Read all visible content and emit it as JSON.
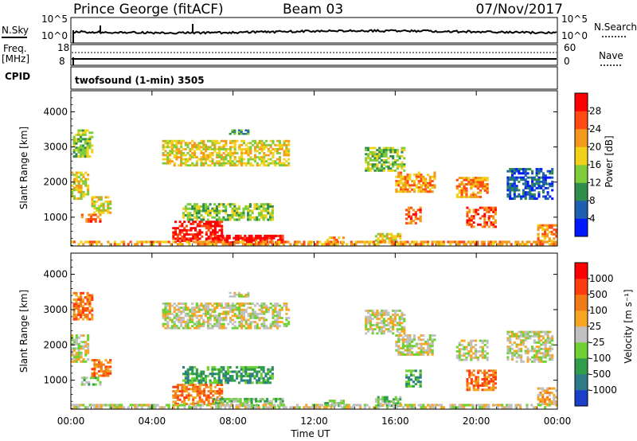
{
  "header": {
    "station": "Prince George (fitACF)",
    "beam": "Beam 03",
    "date": "07/Nov/2017"
  },
  "top_panels": {
    "nsky_label": "N.Sky",
    "nsearch_label": "N.Search",
    "nsky_ticks": [
      "10^5",
      "10^0"
    ],
    "nsearch_ticks": [
      "10^5",
      "10^0"
    ],
    "freq_label_top": "Freq.",
    "freq_label_unit": "[MHz]",
    "freq_ticks": [
      "18",
      "8"
    ],
    "nave_label": "Nave",
    "nave_ticks": [
      "60",
      "0"
    ],
    "cpid_label": "CPID",
    "cpid_text": "twofsound (1-min) 3505"
  },
  "chart_data": [
    {
      "type": "heatmap",
      "name": "power",
      "xlabel": "",
      "ylabel": "Slant Range [km]",
      "x_ticks": [
        "00:00",
        "04:00",
        "08:00",
        "12:00",
        "16:00",
        "20:00",
        "00:00"
      ],
      "y_ticks": [
        "1000",
        "2000",
        "3000",
        "4000"
      ],
      "ylim": [
        180,
        4600
      ],
      "xlim_hours": [
        0,
        24
      ],
      "colorbar": {
        "label": "Power [dB]",
        "ticks": [
          "4",
          "8",
          "12",
          "16",
          "20",
          "24",
          "28"
        ],
        "colors": [
          "#0018ff",
          "#1f5fb0",
          "#2f8e4c",
          "#7fcc3a",
          "#f2d11a",
          "#f39a1c",
          "#ff4a14",
          "#ff0000"
        ]
      },
      "regions": [
        {
          "t0": 0.1,
          "t1": 1.1,
          "r0": 2700,
          "r1": 3500,
          "level": 3
        },
        {
          "t0": 0.0,
          "t1": 0.9,
          "r0": 1500,
          "r1": 2300,
          "level": 4
        },
        {
          "t0": 0.5,
          "t1": 1.5,
          "r0": 850,
          "r1": 1100,
          "level": 6
        },
        {
          "t0": 1.0,
          "t1": 2.0,
          "r0": 1100,
          "r1": 1600,
          "level": 4
        },
        {
          "t0": 4.5,
          "t1": 10.8,
          "r0": 2450,
          "r1": 3200,
          "level": 4
        },
        {
          "t0": 7.8,
          "t1": 8.8,
          "r0": 3350,
          "r1": 3500,
          "level": 2
        },
        {
          "t0": 5.0,
          "t1": 7.5,
          "r0": 300,
          "r1": 900,
          "level": 7
        },
        {
          "t0": 7.0,
          "t1": 10.5,
          "r0": 250,
          "r1": 500,
          "level": 7
        },
        {
          "t0": 5.5,
          "t1": 10.0,
          "r0": 900,
          "r1": 1400,
          "level": 3
        },
        {
          "t0": 12.5,
          "t1": 13.5,
          "r0": 250,
          "r1": 450,
          "level": 5
        },
        {
          "t0": 14.5,
          "t1": 16.5,
          "r0": 2300,
          "r1": 3000,
          "level": 3
        },
        {
          "t0": 16.0,
          "t1": 18.0,
          "r0": 1700,
          "r1": 2300,
          "level": 5
        },
        {
          "t0": 16.5,
          "t1": 17.3,
          "r0": 800,
          "r1": 1300,
          "level": 6
        },
        {
          "t0": 15.0,
          "t1": 16.3,
          "r0": 250,
          "r1": 550,
          "level": 4
        },
        {
          "t0": 19.0,
          "t1": 20.6,
          "r0": 1550,
          "r1": 2150,
          "level": 5
        },
        {
          "t0": 19.5,
          "t1": 21.0,
          "r0": 700,
          "r1": 1300,
          "level": 6
        },
        {
          "t0": 21.5,
          "t1": 23.8,
          "r0": 1500,
          "r1": 2400,
          "level": 1
        },
        {
          "t0": 23.0,
          "t1": 24.0,
          "r0": 300,
          "r1": 800,
          "level": 5
        },
        {
          "t0": 0.0,
          "t1": 24.0,
          "r0": 200,
          "r1": 330,
          "level": 5
        }
      ]
    },
    {
      "type": "heatmap",
      "name": "velocity",
      "xlabel": "Time UT",
      "ylabel": "Slant Range [km]",
      "x_ticks": [
        "00:00",
        "04:00",
        "08:00",
        "12:00",
        "16:00",
        "20:00",
        "00:00"
      ],
      "y_ticks": [
        "1000",
        "2000",
        "3000",
        "4000"
      ],
      "ylim": [
        180,
        4600
      ],
      "xlim_hours": [
        0,
        24
      ],
      "colorbar": {
        "label": "Velocity [m s⁻¹]",
        "ticks": [
          "1000",
          "500",
          "100",
          "25",
          "-25",
          "-100",
          "-500",
          "-1000"
        ],
        "colors": [
          "#1a3fc8",
          "#2e7a8a",
          "#2f9e4a",
          "#6fd134",
          "#c0c0c0",
          "#f6a623",
          "#f07a16",
          "#ff3b10",
          "#ff0000"
        ]
      },
      "regions": [
        {
          "t0": 0.1,
          "t1": 1.1,
          "r0": 2700,
          "r1": 3500,
          "level": 6
        },
        {
          "t0": 0.0,
          "t1": 0.9,
          "r0": 1500,
          "r1": 2300,
          "level": 4
        },
        {
          "t0": 0.5,
          "t1": 1.5,
          "r0": 850,
          "r1": 1100,
          "level": 3
        },
        {
          "t0": 1.0,
          "t1": 2.0,
          "r0": 1100,
          "r1": 1600,
          "level": 6
        },
        {
          "t0": 4.5,
          "t1": 10.8,
          "r0": 2450,
          "r1": 3200,
          "level": 4
        },
        {
          "t0": 7.8,
          "t1": 8.8,
          "r0": 3350,
          "r1": 3500,
          "level": 4
        },
        {
          "t0": 5.0,
          "t1": 7.5,
          "r0": 300,
          "r1": 900,
          "level": 6
        },
        {
          "t0": 7.0,
          "t1": 10.5,
          "r0": 250,
          "r1": 500,
          "level": 3
        },
        {
          "t0": 5.5,
          "t1": 10.0,
          "r0": 900,
          "r1": 1400,
          "level": 2
        },
        {
          "t0": 12.5,
          "t1": 13.5,
          "r0": 250,
          "r1": 450,
          "level": 3
        },
        {
          "t0": 14.5,
          "t1": 16.5,
          "r0": 2300,
          "r1": 3000,
          "level": 4
        },
        {
          "t0": 16.0,
          "t1": 18.0,
          "r0": 1700,
          "r1": 2300,
          "level": 4
        },
        {
          "t0": 16.5,
          "t1": 17.3,
          "r0": 800,
          "r1": 1300,
          "level": 2
        },
        {
          "t0": 15.0,
          "t1": 16.3,
          "r0": 250,
          "r1": 550,
          "level": 3
        },
        {
          "t0": 19.0,
          "t1": 20.6,
          "r0": 1550,
          "r1": 2150,
          "level": 4
        },
        {
          "t0": 19.5,
          "t1": 21.0,
          "r0": 700,
          "r1": 1300,
          "level": 6
        },
        {
          "t0": 21.5,
          "t1": 23.8,
          "r0": 1500,
          "r1": 2400,
          "level": 4
        },
        {
          "t0": 23.0,
          "t1": 24.0,
          "r0": 300,
          "r1": 800,
          "level": 5
        },
        {
          "t0": 0.0,
          "t1": 24.0,
          "r0": 200,
          "r1": 330,
          "level": 4
        }
      ]
    }
  ]
}
